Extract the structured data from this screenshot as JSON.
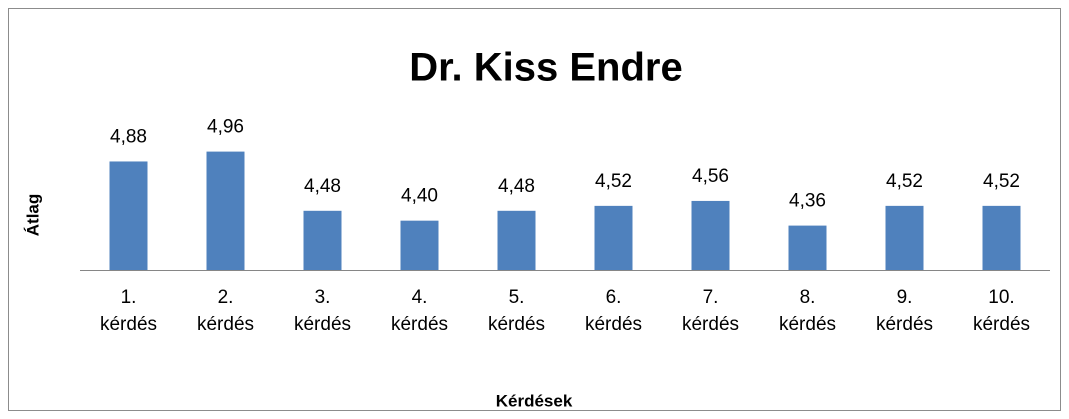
{
  "chart_data": {
    "type": "bar",
    "title": "Dr. Kiss Endre",
    "x_label": "Kérdések",
    "y_label": "Átlag",
    "categories": [
      "1. kérdés",
      "2. kérdés",
      "3. kérdés",
      "4. kérdés",
      "5. kérdés",
      "6. kérdés",
      "7. kérdés",
      "8. kérdés",
      "9. kérdés",
      "10. kérdés"
    ],
    "values": [
      4.88,
      4.96,
      4.48,
      4.4,
      4.48,
      4.52,
      4.56,
      4.36,
      4.52,
      4.52
    ],
    "value_labels": [
      "4,88",
      "4,96",
      "4,48",
      "4,40",
      "4,48",
      "4,52",
      "4,56",
      "4,36",
      "4,52",
      "4,52"
    ],
    "color": "#4f81bd",
    "ylim": [
      4,
      5.2
    ],
    "yticks": [],
    "grid": false
  }
}
